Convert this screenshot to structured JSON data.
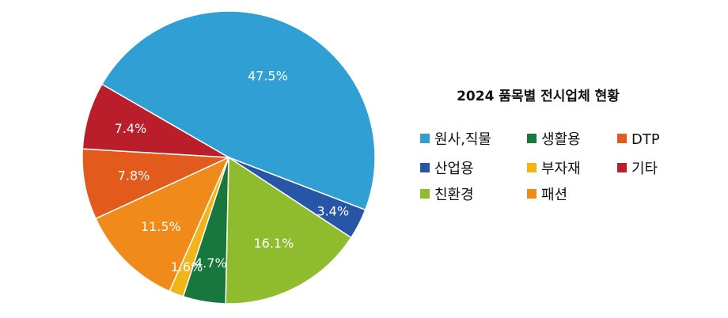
{
  "chart_data": {
    "type": "pie",
    "title": "2024 품목별 전시업체 현황",
    "slices": [
      {
        "label": "원사,직물",
        "value": 47.5,
        "display": "47.5%",
        "color": "#2f9fd4"
      },
      {
        "label": "산업용",
        "value": 3.4,
        "display": "3.4%",
        "color": "#2755a8"
      },
      {
        "label": "친환경",
        "value": 16.1,
        "display": "16.1%",
        "color": "#8fbc2e"
      },
      {
        "label": "생활용",
        "value": 4.7,
        "display": "4.7%",
        "color": "#17773d"
      },
      {
        "label": "부자재",
        "value": 1.6,
        "display": "1.6%",
        "color": "#f2b519"
      },
      {
        "label": "패션",
        "value": 11.5,
        "display": "11.5%",
        "color": "#ef8a1b"
      },
      {
        "label": "DTP",
        "value": 7.8,
        "display": "7.8%",
        "color": "#e25a1c"
      },
      {
        "label": "기타",
        "value": 7.4,
        "display": "7.4%",
        "color": "#bb1e2b"
      }
    ],
    "legend_order": [
      "원사,직물",
      "생활용",
      "DTP",
      "산업용",
      "부자재",
      "기타",
      "친환경",
      "패션"
    ],
    "legend_placement": "right"
  }
}
